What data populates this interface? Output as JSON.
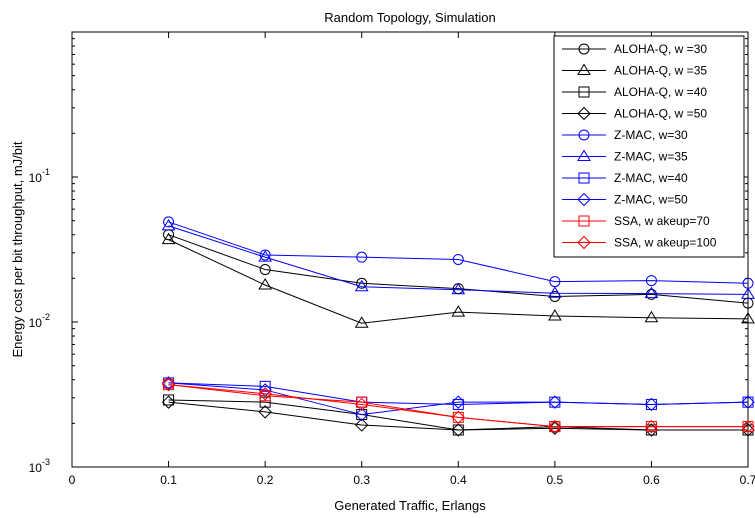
{
  "chart_data": {
    "type": "line",
    "title": "Random Topology, Simulation",
    "xlabel": "Generated Traffic, Erlangs",
    "ylabel": "Energy cost per bit throughput, mJ/bit",
    "xlim": [
      0,
      0.7
    ],
    "ylim": [
      0.001,
      1
    ],
    "yscale": "log",
    "grid": false,
    "legend_position": "top-right",
    "x": [
      0.1,
      0.2,
      0.3,
      0.4,
      0.5,
      0.6,
      0.7
    ],
    "x_ticks": [
      0,
      0.1,
      0.2,
      0.3,
      0.4,
      0.5,
      0.6,
      0.7
    ],
    "x_tick_labels": [
      "0",
      "0.1",
      "0.2",
      "0.3",
      "0.4",
      "0.5",
      "0.6",
      "0.7"
    ],
    "y_ticks": [
      0.001,
      0.01,
      0.1
    ],
    "y_tick_bases": [
      "10",
      "10",
      "10"
    ],
    "y_tick_exponents": [
      "-3",
      "-2",
      "-1"
    ],
    "series": [
      {
        "name": "ALOHA-Q, w =30",
        "color": "#000000",
        "marker": "circle",
        "values": [
          0.04,
          0.023,
          0.0185,
          0.017,
          0.015,
          0.0155,
          0.0135
        ]
      },
      {
        "name": "ALOHA-Q, w =35",
        "color": "#000000",
        "marker": "triangle",
        "values": [
          0.037,
          0.018,
          0.0098,
          0.0117,
          0.011,
          0.0107,
          0.0105
        ]
      },
      {
        "name": "ALOHA-Q, w =40",
        "color": "#000000",
        "marker": "square",
        "values": [
          0.0029,
          0.0028,
          0.0023,
          0.0018,
          0.0019,
          0.0018,
          0.0018
        ]
      },
      {
        "name": "ALOHA-Q, w =50",
        "color": "#000000",
        "marker": "diamond",
        "values": [
          0.0028,
          0.0024,
          0.00195,
          0.0018,
          0.00185,
          0.0018,
          0.0018
        ]
      },
      {
        "name": "Z-MAC, w=30",
        "color": "#0000ff",
        "marker": "circle",
        "values": [
          0.049,
          0.029,
          0.028,
          0.027,
          0.019,
          0.0193,
          0.0185
        ]
      },
      {
        "name": "Z-MAC, w=35",
        "color": "#0000ff",
        "marker": "triangle",
        "values": [
          0.046,
          0.028,
          0.0175,
          0.0167,
          0.0158,
          0.0157,
          0.0155
        ]
      },
      {
        "name": "Z-MAC, w=40",
        "color": "#0000ff",
        "marker": "square",
        "values": [
          0.0038,
          0.0036,
          0.0028,
          0.0027,
          0.0028,
          0.0027,
          0.0028
        ]
      },
      {
        "name": "Z-MAC, w=50",
        "color": "#0000ff",
        "marker": "diamond",
        "values": [
          0.0038,
          0.0034,
          0.0023,
          0.0028,
          0.0028,
          0.0027,
          0.0028
        ]
      },
      {
        "name": "SSA, w akeup=70",
        "color": "#ff0000",
        "marker": "square",
        "values": [
          0.0037,
          0.0031,
          0.0028,
          0.0022,
          0.0019,
          0.0019,
          0.0019
        ]
      },
      {
        "name": "SSA, w akeup=100",
        "color": "#ff0000",
        "marker": "diamond",
        "values": [
          0.0037,
          0.0032,
          0.0027,
          0.0022,
          0.0019,
          0.0019,
          0.0019
        ]
      }
    ]
  }
}
